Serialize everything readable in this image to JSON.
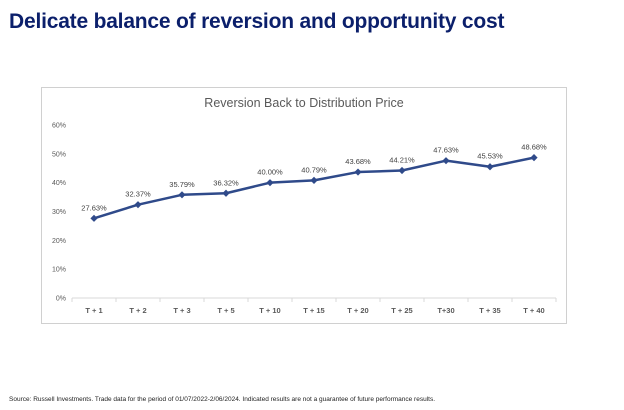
{
  "slide": {
    "title": "Delicate balance of reversion and opportunity cost",
    "source_note": "Source: Russell Investments. Trade data for the period of 01/07/2022-2/06/2024. Indicated results are not a guarantee of future performance results."
  },
  "colors": {
    "title": "#0b1f6b",
    "series": "#2f4a8a",
    "chart_title": "#595959",
    "tick_label": "#595959",
    "grid": "#d9d9d9"
  },
  "chart_data": {
    "type": "line",
    "title": "Reversion Back to Distribution Price",
    "xlabel": "",
    "ylabel": "",
    "categories": [
      "T + 1",
      "T + 2",
      "T + 3",
      "T + 5",
      "T + 10",
      "T + 15",
      "T + 20",
      "T + 25",
      "T+30",
      "T + 35",
      "T + 40"
    ],
    "series": [
      {
        "values": [
          27.63,
          32.37,
          35.79,
          36.32,
          40.0,
          40.79,
          43.68,
          44.21,
          47.63,
          45.53,
          48.68
        ],
        "data_labels": [
          "27.63%",
          "32.37%",
          "35.79%",
          "36.32%",
          "40.00%",
          "40.79%",
          "43.68%",
          "44.21%",
          "47.63%",
          "45.53%",
          "48.68%"
        ]
      }
    ],
    "ylim": [
      0,
      60
    ],
    "yticks": [
      0,
      10,
      20,
      30,
      40,
      50,
      60
    ],
    "ytick_labels": [
      "0%",
      "10%",
      "20%",
      "30%",
      "40%",
      "50%",
      "60%"
    ],
    "grid": false,
    "legend": "none",
    "marker": "diamond"
  }
}
